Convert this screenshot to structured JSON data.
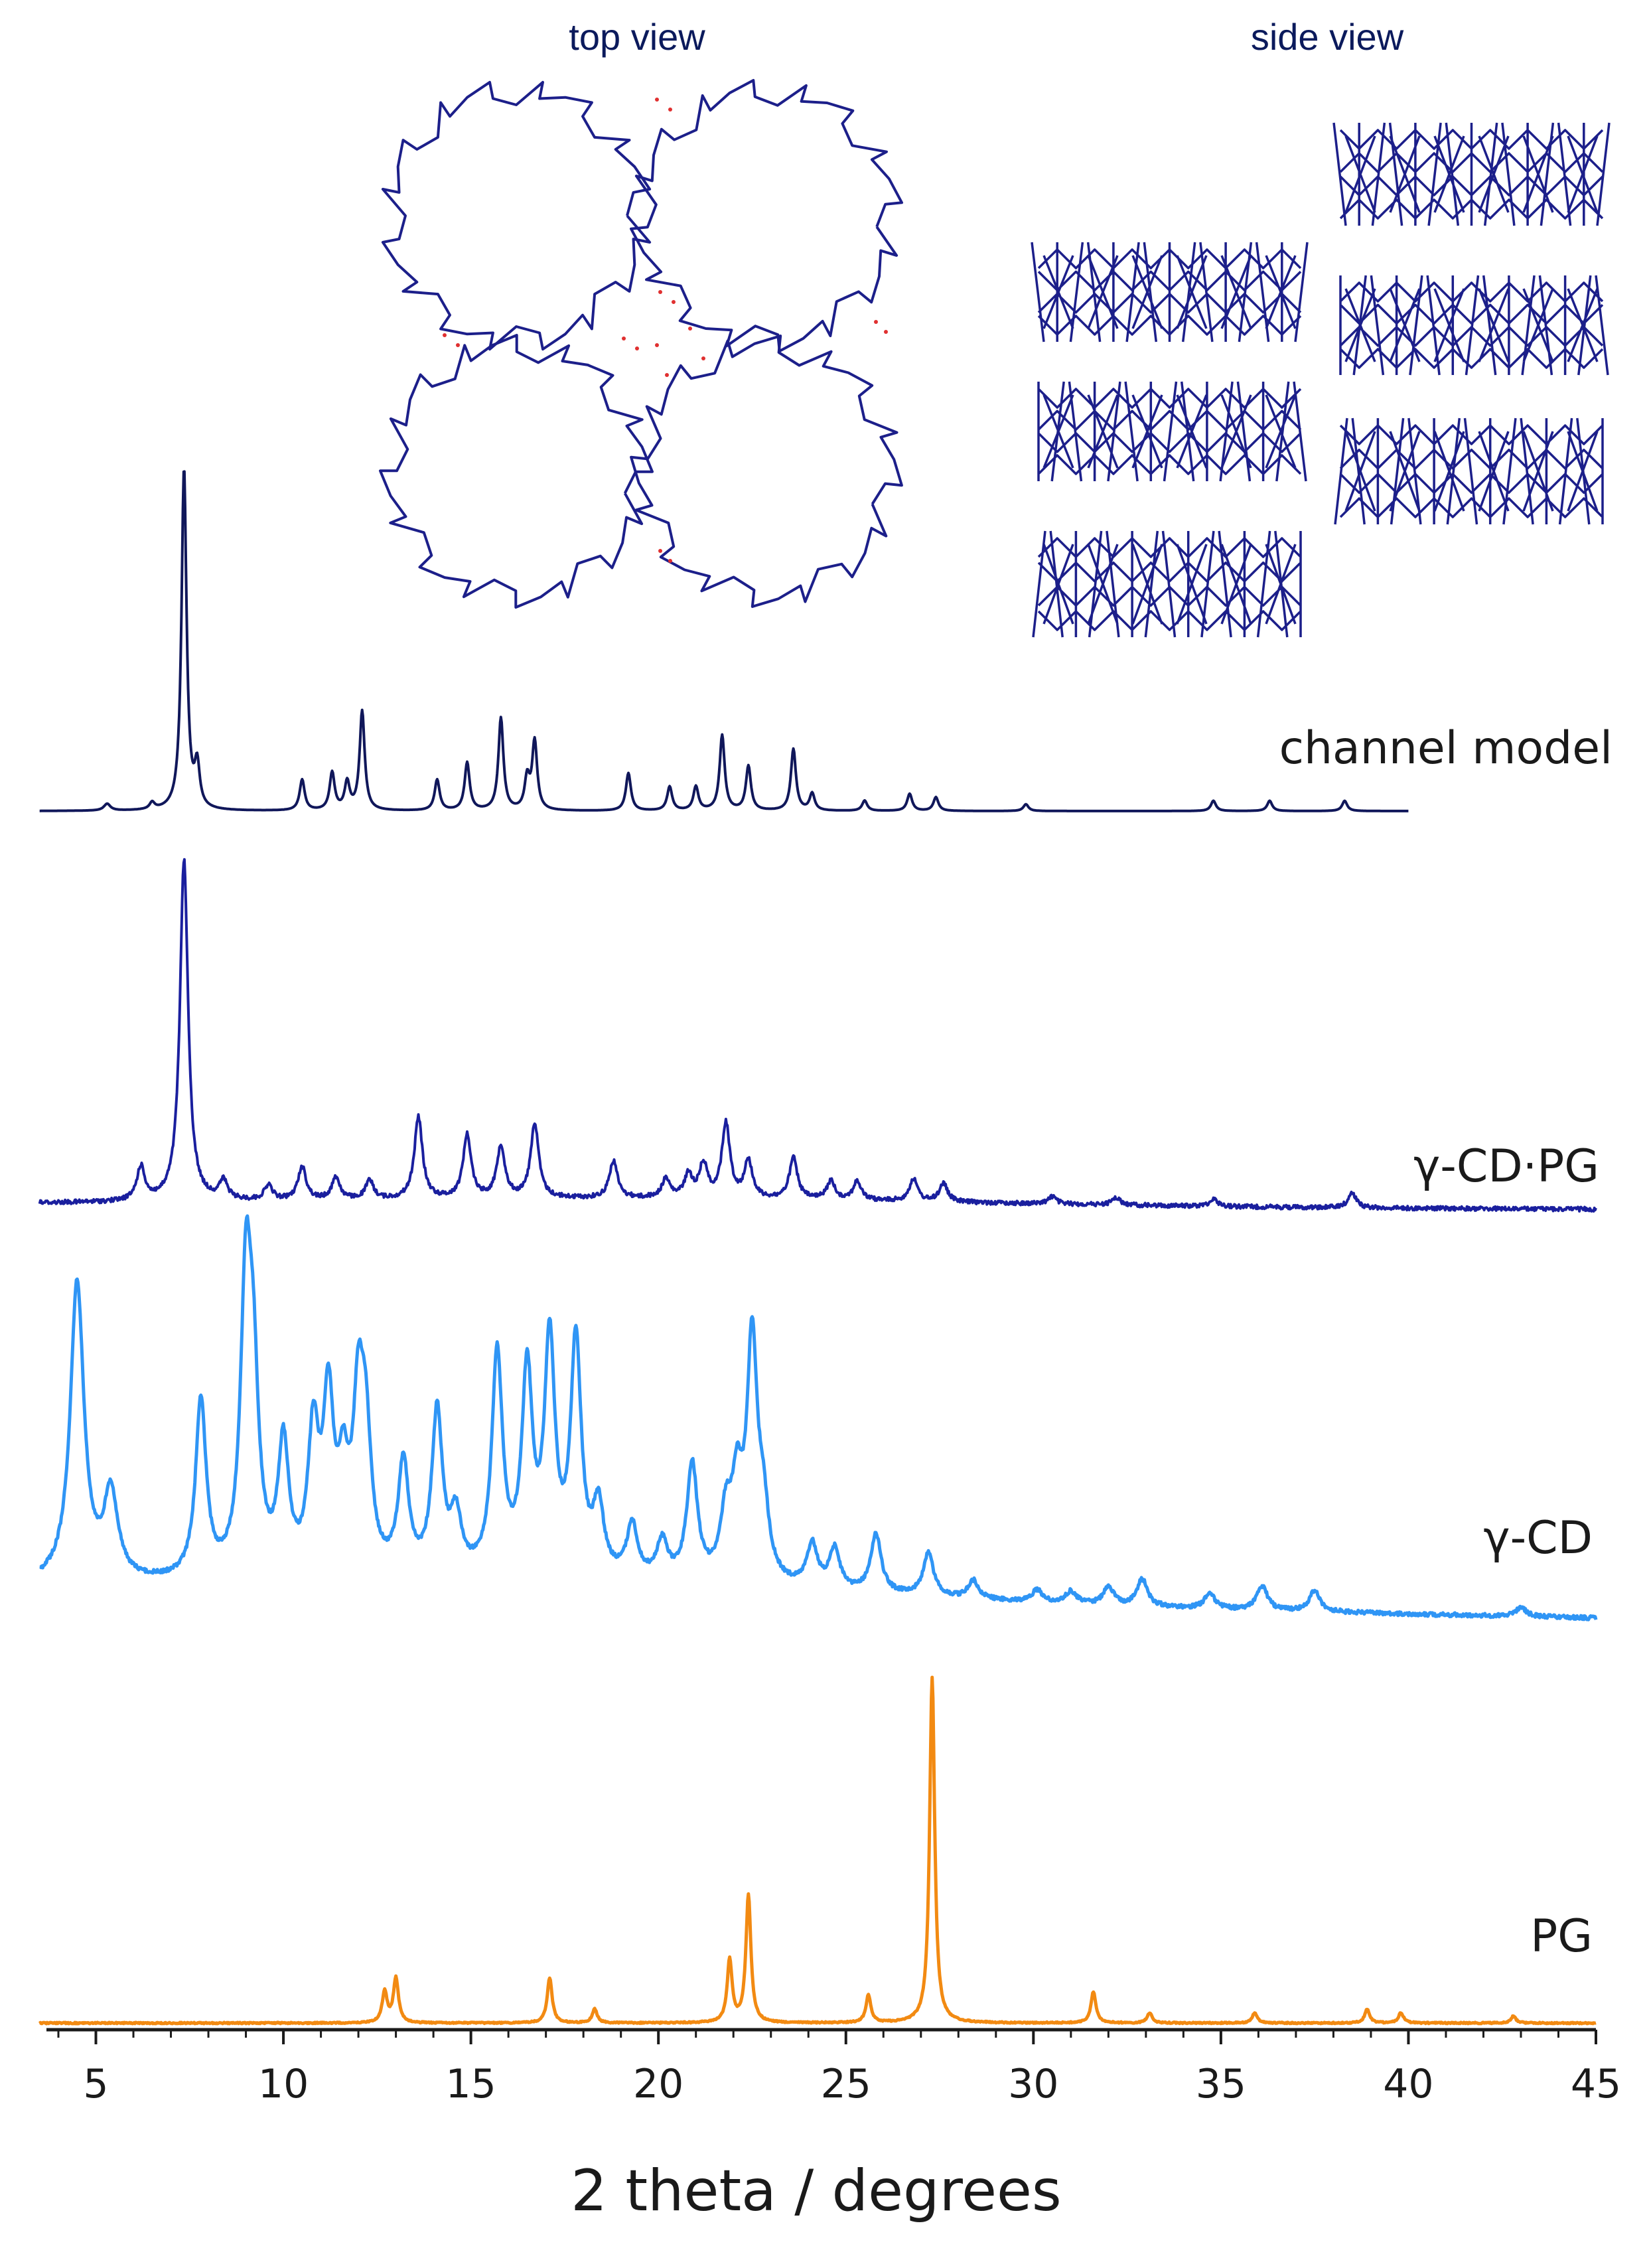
{
  "chart_data": {
    "type": "line",
    "title": "",
    "xlabel": "2 theta / degrees",
    "ylabel": "",
    "xlim": [
      3.5,
      45
    ],
    "xticks": [
      5,
      10,
      15,
      20,
      25,
      30,
      35,
      40,
      45
    ],
    "grid": false,
    "inset_labels": {
      "top_view": "top view",
      "side_view": "side view"
    },
    "colors": {
      "channel_model": "#10175a",
      "gcd_pg": "#1a1f9e",
      "gcd": "#2f95f5",
      "pg": "#f28a12",
      "molecule": "#1c1f8a",
      "water": "#e03030"
    },
    "series": [
      {
        "name": "channel model",
        "x_start": 3.5,
        "x_end": 40,
        "peaks": [
          [
            5.3,
            0.02
          ],
          [
            6.5,
            0.02
          ],
          [
            7.35,
            1.0
          ],
          [
            7.7,
            0.12
          ],
          [
            10.5,
            0.09
          ],
          [
            11.3,
            0.11
          ],
          [
            11.7,
            0.08
          ],
          [
            12.1,
            0.29
          ],
          [
            14.1,
            0.09
          ],
          [
            14.9,
            0.14
          ],
          [
            15.8,
            0.27
          ],
          [
            16.5,
            0.09
          ],
          [
            16.7,
            0.2
          ],
          [
            19.2,
            0.11
          ],
          [
            20.3,
            0.07
          ],
          [
            21.0,
            0.07
          ],
          [
            21.7,
            0.22
          ],
          [
            22.4,
            0.13
          ],
          [
            23.6,
            0.18
          ],
          [
            24.1,
            0.05
          ],
          [
            25.5,
            0.03
          ],
          [
            26.7,
            0.05
          ],
          [
            27.4,
            0.04
          ],
          [
            29.8,
            0.02
          ],
          [
            34.8,
            0.03
          ],
          [
            36.3,
            0.03
          ],
          [
            38.3,
            0.03
          ]
        ]
      },
      {
        "name": "γ-CD·PG",
        "x_start": 3.5,
        "x_end": 45,
        "peaks": [
          [
            6.2,
            0.09
          ],
          [
            7.35,
            0.92
          ],
          [
            8.4,
            0.05
          ],
          [
            9.6,
            0.04
          ],
          [
            10.5,
            0.09
          ],
          [
            11.4,
            0.06
          ],
          [
            12.3,
            0.05
          ],
          [
            13.6,
            0.22
          ],
          [
            14.9,
            0.17
          ],
          [
            15.8,
            0.14
          ],
          [
            16.7,
            0.2
          ],
          [
            18.8,
            0.1
          ],
          [
            20.2,
            0.05
          ],
          [
            20.8,
            0.06
          ],
          [
            21.2,
            0.09
          ],
          [
            21.8,
            0.2
          ],
          [
            22.4,
            0.1
          ],
          [
            23.6,
            0.11
          ],
          [
            24.6,
            0.05
          ],
          [
            25.3,
            0.05
          ],
          [
            26.8,
            0.06
          ],
          [
            27.6,
            0.05
          ],
          [
            30.5,
            0.02
          ],
          [
            32.2,
            0.02
          ],
          [
            34.8,
            0.02
          ],
          [
            38.5,
            0.04
          ]
        ]
      },
      {
        "name": "γ-CD",
        "x_start": 3.5,
        "x_end": 45,
        "peaks": [
          [
            4.5,
            0.98
          ],
          [
            5.4,
            0.28
          ],
          [
            7.8,
            0.58
          ],
          [
            9.0,
            0.92
          ],
          [
            9.2,
            0.55
          ],
          [
            10.0,
            0.42
          ],
          [
            10.8,
            0.45
          ],
          [
            11.2,
            0.55
          ],
          [
            11.6,
            0.28
          ],
          [
            12.0,
            0.52
          ],
          [
            12.2,
            0.4
          ],
          [
            13.2,
            0.36
          ],
          [
            14.1,
            0.53
          ],
          [
            14.6,
            0.18
          ],
          [
            15.7,
            0.72
          ],
          [
            16.5,
            0.65
          ],
          [
            17.1,
            0.75
          ],
          [
            17.8,
            0.76
          ],
          [
            18.4,
            0.22
          ],
          [
            19.3,
            0.17
          ],
          [
            20.1,
            0.12
          ],
          [
            20.9,
            0.38
          ],
          [
            21.8,
            0.2
          ],
          [
            22.1,
            0.28
          ],
          [
            22.5,
            0.78
          ],
          [
            22.8,
            0.2
          ],
          [
            24.1,
            0.14
          ],
          [
            24.7,
            0.13
          ],
          [
            25.8,
            0.19
          ],
          [
            27.2,
            0.14
          ],
          [
            28.4,
            0.06
          ],
          [
            30.1,
            0.04
          ],
          [
            31.0,
            0.04
          ],
          [
            32.0,
            0.06
          ],
          [
            32.9,
            0.09
          ],
          [
            34.7,
            0.05
          ],
          [
            36.1,
            0.08
          ],
          [
            37.5,
            0.07
          ],
          [
            43.0,
            0.03
          ]
        ]
      },
      {
        "name": "PG",
        "x_start": 3.5,
        "x_end": 45,
        "peaks": [
          [
            12.7,
            0.09
          ],
          [
            13.0,
            0.13
          ],
          [
            17.1,
            0.13
          ],
          [
            18.3,
            0.04
          ],
          [
            21.9,
            0.18
          ],
          [
            22.4,
            0.37
          ],
          [
            25.6,
            0.08
          ],
          [
            27.3,
            1.0
          ],
          [
            31.6,
            0.09
          ],
          [
            33.1,
            0.03
          ],
          [
            35.9,
            0.03
          ],
          [
            38.9,
            0.04
          ],
          [
            39.8,
            0.03
          ],
          [
            42.8,
            0.02
          ]
        ]
      }
    ]
  }
}
